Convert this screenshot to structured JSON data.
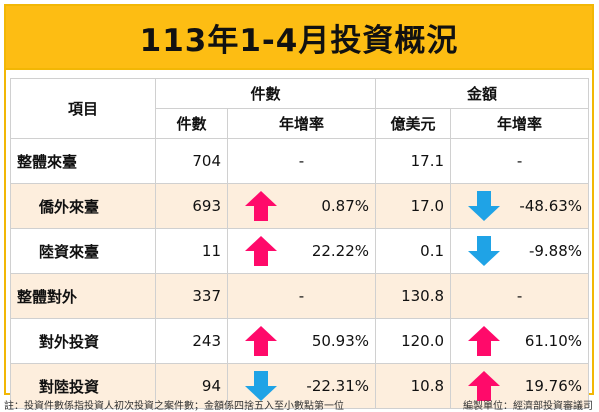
{
  "title": "113年1-4月投資概況",
  "header": {
    "item": "項目",
    "count_group": "件數",
    "amount_group": "金額",
    "count": "件數",
    "count_growth": "年增率",
    "amount_unit": "億美元",
    "amount_growth": "年增率"
  },
  "rows": [
    {
      "label": "整體來臺",
      "count": "704",
      "count_growth": "-",
      "count_arrow": "none",
      "amount": "17.1",
      "amount_growth": "-",
      "amount_arrow": "none"
    },
    {
      "label": "僑外來臺",
      "count": "693",
      "count_growth": "0.87%",
      "count_arrow": "up",
      "amount": "17.0",
      "amount_growth": "-48.63%",
      "amount_arrow": "down"
    },
    {
      "label": "陸資來臺",
      "count": "11",
      "count_growth": "22.22%",
      "count_arrow": "up",
      "amount": "0.1",
      "amount_growth": "-9.88%",
      "amount_arrow": "down"
    },
    {
      "label": "整體對外",
      "count": "337",
      "count_growth": "-",
      "count_arrow": "none",
      "amount": "130.8",
      "amount_growth": "-",
      "amount_arrow": "none"
    },
    {
      "label": "對外投資",
      "count": "243",
      "count_growth": "50.93%",
      "count_arrow": "up",
      "amount": "120.0",
      "amount_growth": "61.10%",
      "amount_arrow": "up"
    },
    {
      "label": "對陸投資",
      "count": "94",
      "count_growth": "-22.31%",
      "count_arrow": "down",
      "amount": "10.8",
      "amount_growth": "19.76%",
      "amount_arrow": "up"
    }
  ],
  "footer": {
    "note": "註：投資件數係指投資人初次投資之案件數；金額係四捨五入至小數點第一位",
    "source": "編製單位：經濟部投資審議司"
  },
  "colors": {
    "title_bg": "#fdbd13",
    "up_arrow": "#ff0a6a",
    "down_arrow": "#1fa3e6",
    "alt_row": "#fdeedd"
  }
}
